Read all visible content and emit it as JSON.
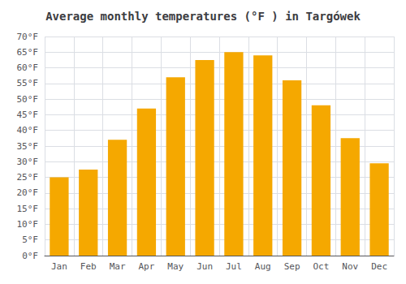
{
  "chart_data": {
    "type": "bar",
    "title": "Average monthly temperatures (°F ) in Targówek",
    "categories": [
      "Jan",
      "Feb",
      "Mar",
      "Apr",
      "May",
      "Jun",
      "Jul",
      "Aug",
      "Sep",
      "Oct",
      "Nov",
      "Dec"
    ],
    "values": [
      25,
      27.5,
      37,
      47,
      57,
      62.5,
      65,
      64,
      56,
      48,
      37.5,
      29.5
    ],
    "color": "#F5A800",
    "ylim": [
      0,
      70
    ],
    "yticks": [
      {
        "value": 0,
        "label": "0°F"
      },
      {
        "value": 5,
        "label": "5°F"
      },
      {
        "value": 10,
        "label": "10°F"
      },
      {
        "value": 15,
        "label": "15°F"
      },
      {
        "value": 20,
        "label": "20°F"
      },
      {
        "value": 25,
        "label": "25°F"
      },
      {
        "value": 30,
        "label": "30°F"
      },
      {
        "value": 35,
        "label": "35°F"
      },
      {
        "value": 40,
        "label": "40°F"
      },
      {
        "value": 45,
        "label": "45°F"
      },
      {
        "value": 50,
        "label": "50°F"
      },
      {
        "value": 55,
        "label": "55°F"
      },
      {
        "value": 60,
        "label": "60°F"
      },
      {
        "value": 65,
        "label": "65°F"
      },
      {
        "value": 70,
        "label": "70°F"
      }
    ],
    "grid": true
  }
}
